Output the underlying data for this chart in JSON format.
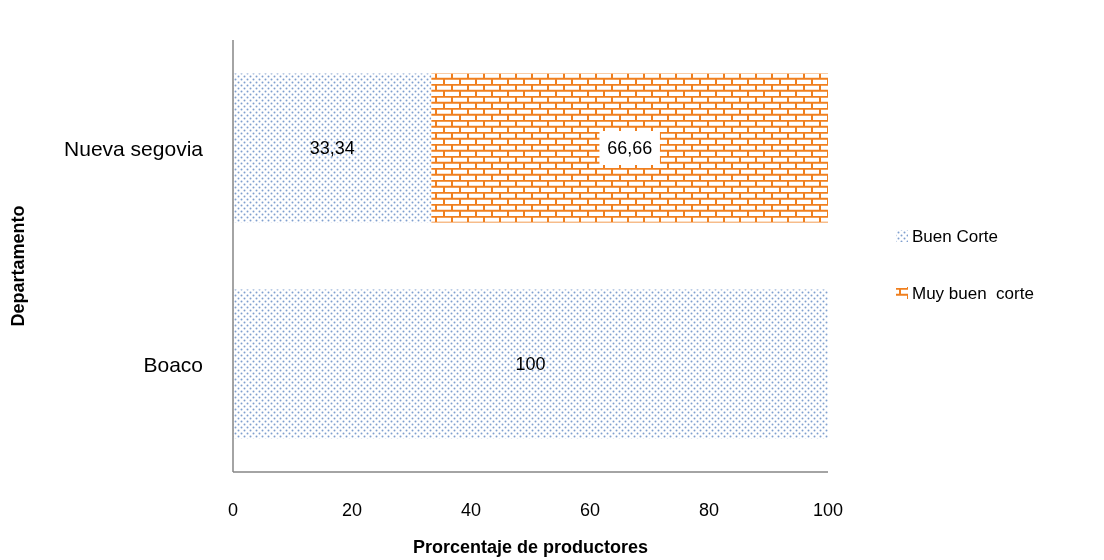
{
  "chart_data": {
    "type": "bar",
    "orientation": "horizontal",
    "stacked": true,
    "xlabel": "Prorcentaje de productores",
    "ylabel": "Departamento",
    "categories": [
      "Nueva segovia",
      "Boaco"
    ],
    "series": [
      {
        "name": "Buen Corte",
        "color": "#7f9fcf",
        "values": [
          33.34,
          100
        ],
        "value_labels": [
          "33,34",
          "100"
        ]
      },
      {
        "name": "Muy buen  corte",
        "color": "#f07f1e",
        "values": [
          66.66,
          null
        ],
        "value_labels": [
          "66,66",
          null
        ]
      }
    ],
    "xlim": [
      0,
      100
    ],
    "xticks": [
      0,
      20,
      40,
      60,
      80,
      100
    ],
    "grid": false,
    "legend": "right"
  }
}
